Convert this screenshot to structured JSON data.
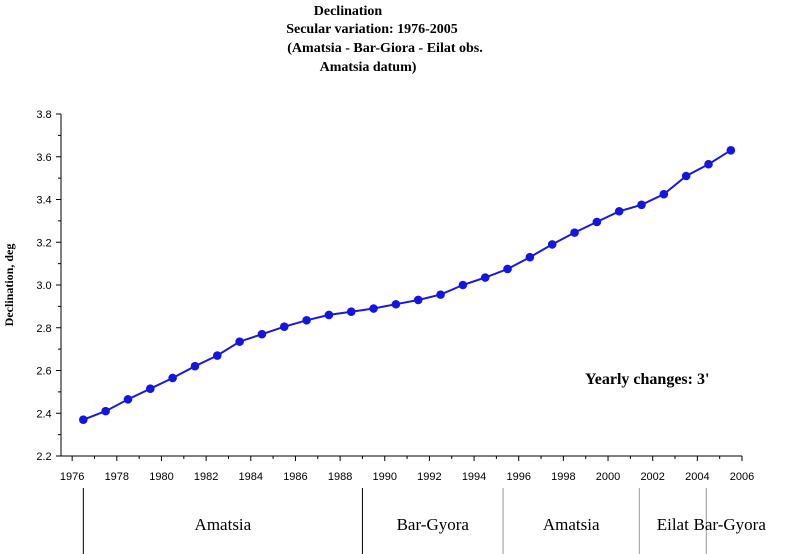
{
  "chart_data": {
    "type": "line",
    "title": [
      "Declination",
      "Secular variation: 1976-2005",
      "(Amatsia - Bar-Giora - Eilat obs.",
      "Amatsia datum)"
    ],
    "xlabel": "",
    "ylabel": "Declination, deg",
    "xlim": [
      1975.5,
      2006
    ],
    "ylim": [
      2.2,
      3.8
    ],
    "x_ticks": [
      "1976",
      "1978",
      "1980",
      "1982",
      "1984",
      "1986",
      "1988",
      "1990",
      "1992",
      "1994",
      "1996",
      "1998",
      "2000",
      "2002",
      "2004",
      "2006"
    ],
    "y_ticks": [
      "2.2",
      "2.4",
      "2.6",
      "2.8",
      "3.0",
      "3.2",
      "3.4",
      "3.6",
      "3.8"
    ],
    "grid": false,
    "annotation": "Yearly changes: 3'",
    "series": [
      {
        "color": "#1515e0",
        "x": [
          1976.5,
          1977.5,
          1978.5,
          1979.5,
          1980.5,
          1981.5,
          1982.5,
          1983.5,
          1984.5,
          1985.5,
          1986.5,
          1987.5,
          1988.5,
          1989.5,
          1990.5,
          1991.5,
          1992.5,
          1993.5,
          1994.5,
          1995.5,
          1996.5,
          1997.5,
          1998.5,
          1999.5,
          2000.5,
          2001.5,
          2002.5,
          2003.5,
          2004.5,
          2005.5
        ],
        "y": [
          2.37,
          2.41,
          2.465,
          2.515,
          2.565,
          2.62,
          2.67,
          2.735,
          2.77,
          2.805,
          2.835,
          2.86,
          2.875,
          2.89,
          2.91,
          2.93,
          2.955,
          3.0,
          3.035,
          3.075,
          3.13,
          3.19,
          3.245,
          3.295,
          3.345,
          3.375,
          3.425,
          3.51,
          3.565,
          3.63
        ]
      }
    ],
    "segments": [
      {
        "label": "Amatsia",
        "start": 1976.5,
        "end": 1989.0
      },
      {
        "label": "Bar-Gyora",
        "start": 1989.0,
        "end": 1995.3
      },
      {
        "label": "Amatsia",
        "start": 1995.3,
        "end": 2001.4
      },
      {
        "label": "Eilat",
        "start": 2001.4,
        "end": 2004.4
      },
      {
        "label": "Bar-Gyora",
        "start": 2004.4,
        "end": 2006.5
      }
    ]
  }
}
